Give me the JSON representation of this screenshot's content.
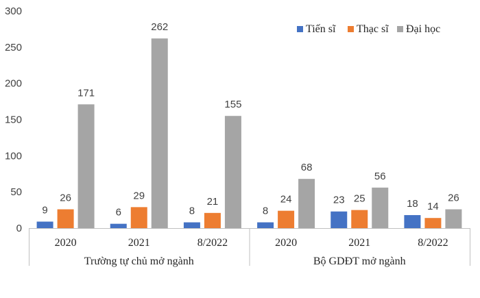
{
  "chart_data": {
    "type": "bar",
    "title": "",
    "xlabel": "",
    "ylabel": "",
    "ylim": [
      0,
      300
    ],
    "yticks": [
      0,
      50,
      100,
      150,
      200,
      250,
      300
    ],
    "grid": false,
    "legend_position": "top-right",
    "groups": [
      {
        "label": "Trường tự chủ mở ngành",
        "categories": [
          "2020",
          "2021",
          "8/2022"
        ]
      },
      {
        "label": "Bộ GDĐT mở ngành",
        "categories": [
          "2020",
          "2021",
          "8/2022"
        ]
      }
    ],
    "series": [
      {
        "name": "Tiến sĩ",
        "color": "#4472C4",
        "values": [
          9,
          6,
          8,
          8,
          23,
          18
        ]
      },
      {
        "name": "Thạc sĩ",
        "color": "#ED7D31",
        "values": [
          26,
          29,
          21,
          24,
          25,
          14
        ]
      },
      {
        "name": "Đại học",
        "color": "#A5A5A5",
        "values": [
          171,
          262,
          155,
          68,
          56,
          26
        ]
      }
    ]
  }
}
